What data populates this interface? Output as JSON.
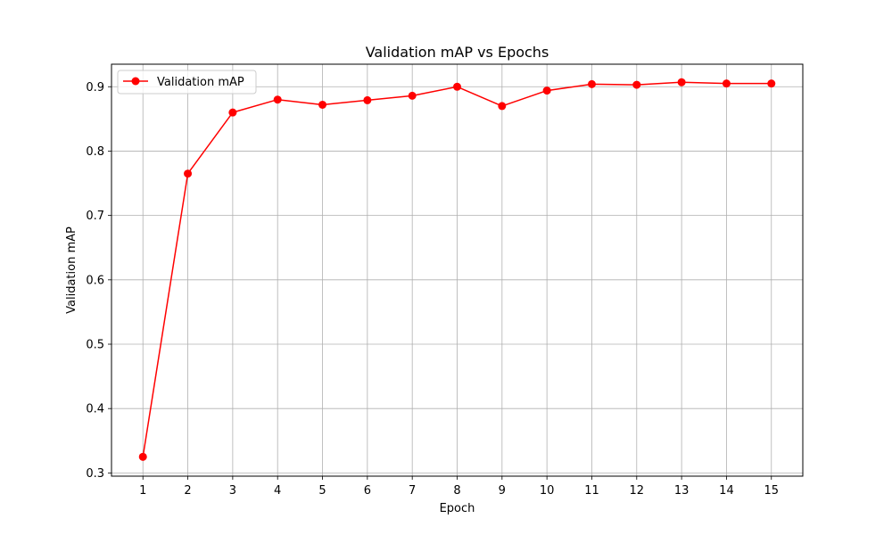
{
  "chart_data": {
    "type": "line",
    "title": "Validation mAP vs Epochs",
    "xlabel": "Epoch",
    "ylabel": "Validation mAP",
    "x": [
      1,
      2,
      3,
      4,
      5,
      6,
      7,
      8,
      9,
      10,
      11,
      12,
      13,
      14,
      15
    ],
    "x_ticks": [
      "1",
      "2",
      "3",
      "4",
      "5",
      "6",
      "7",
      "8",
      "9",
      "10",
      "11",
      "12",
      "13",
      "14",
      "15"
    ],
    "y_ticks": [
      "0.3",
      "0.4",
      "0.5",
      "0.6",
      "0.7",
      "0.8",
      "0.9"
    ],
    "xlim": [
      0.3,
      15.7
    ],
    "ylim": [
      0.295,
      0.935
    ],
    "grid": true,
    "legend_position": "top-left",
    "series": [
      {
        "name": "Validation mAP",
        "color": "#ff0000",
        "marker": "circle",
        "values": [
          0.325,
          0.765,
          0.86,
          0.88,
          0.872,
          0.879,
          0.886,
          0.9,
          0.87,
          0.894,
          0.904,
          0.903,
          0.907,
          0.905,
          0.905
        ]
      }
    ]
  }
}
